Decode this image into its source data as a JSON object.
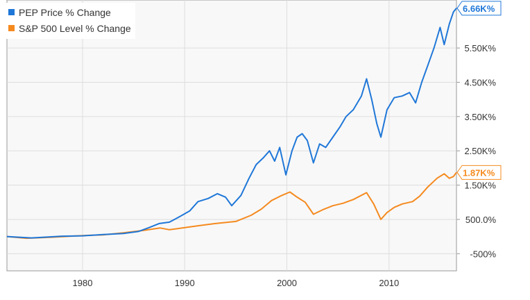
{
  "chart_data": {
    "type": "line",
    "title": "",
    "xlabel": "",
    "ylabel": "",
    "x_ticks": [
      "1980",
      "1990",
      "2000",
      "2010"
    ],
    "y_ticks": [
      {
        "value": -500,
        "label": "-500%"
      },
      {
        "value": 500,
        "label": "500.0%"
      },
      {
        "value": 1500,
        "label": "1.50K%"
      },
      {
        "value": 2500,
        "label": "2.50K%"
      },
      {
        "value": 3500,
        "label": "3.50K%"
      },
      {
        "value": 4500,
        "label": "4.50K%"
      },
      {
        "value": 5500,
        "label": "5.50K%"
      }
    ],
    "xlim": [
      1972.6,
      2016.6
    ],
    "ylim": [
      -1000,
      6900
    ],
    "grid": true,
    "legend_position": "top-left",
    "series": [
      {
        "name": "PEP Price % Change",
        "color": "#1f77d8",
        "end_label": "6.66K%",
        "end_value": 6660,
        "points": [
          [
            1972.6,
            0
          ],
          [
            1975,
            -40
          ],
          [
            1978,
            10
          ],
          [
            1980,
            20
          ],
          [
            1982,
            60
          ],
          [
            1984,
            90
          ],
          [
            1985.5,
            150
          ],
          [
            1986.5,
            260
          ],
          [
            1987.5,
            380
          ],
          [
            1988.5,
            420
          ],
          [
            1989.5,
            580
          ],
          [
            1990.5,
            750
          ],
          [
            1991.3,
            1020
          ],
          [
            1992.3,
            1110
          ],
          [
            1993.2,
            1250
          ],
          [
            1994,
            1150
          ],
          [
            1994.6,
            900
          ],
          [
            1995.5,
            1200
          ],
          [
            1996.3,
            1700
          ],
          [
            1997,
            2100
          ],
          [
            1997.7,
            2300
          ],
          [
            1998.3,
            2500
          ],
          [
            1998.8,
            2200
          ],
          [
            1999.3,
            2600
          ],
          [
            1999.9,
            1800
          ],
          [
            2000.5,
            2500
          ],
          [
            2001,
            2900
          ],
          [
            2001.5,
            3000
          ],
          [
            2002,
            2800
          ],
          [
            2002.6,
            2150
          ],
          [
            2003.2,
            2700
          ],
          [
            2003.8,
            2600
          ],
          [
            2004.5,
            2900
          ],
          [
            2005.2,
            3200
          ],
          [
            2005.8,
            3500
          ],
          [
            2006.5,
            3700
          ],
          [
            2007.3,
            4100
          ],
          [
            2007.8,
            4600
          ],
          [
            2008.3,
            4000
          ],
          [
            2008.8,
            3300
          ],
          [
            2009.2,
            2900
          ],
          [
            2009.8,
            3700
          ],
          [
            2010.5,
            4050
          ],
          [
            2011.3,
            4100
          ],
          [
            2012,
            4200
          ],
          [
            2012.6,
            3900
          ],
          [
            2013.2,
            4500
          ],
          [
            2013.8,
            5000
          ],
          [
            2014.4,
            5500
          ],
          [
            2015,
            6100
          ],
          [
            2015.4,
            5600
          ],
          [
            2015.9,
            6200
          ],
          [
            2016.3,
            6550
          ],
          [
            2016.6,
            6660
          ]
        ]
      },
      {
        "name": "S&P 500 Level % Change",
        "color": "#f58a1f",
        "end_label": "1.87K%",
        "end_value": 1870,
        "points": [
          [
            1972.6,
            0
          ],
          [
            1974.5,
            -50
          ],
          [
            1977,
            -20
          ],
          [
            1980,
            30
          ],
          [
            1982,
            50
          ],
          [
            1984,
            110
          ],
          [
            1986,
            180
          ],
          [
            1987.6,
            250
          ],
          [
            1988.5,
            200
          ],
          [
            1990,
            260
          ],
          [
            1991.5,
            320
          ],
          [
            1993,
            380
          ],
          [
            1995,
            440
          ],
          [
            1996.5,
            620
          ],
          [
            1997.5,
            800
          ],
          [
            1998.5,
            1050
          ],
          [
            1999.5,
            1200
          ],
          [
            2000.3,
            1300
          ],
          [
            2001,
            1150
          ],
          [
            2001.8,
            1000
          ],
          [
            2002.6,
            650
          ],
          [
            2003.5,
            780
          ],
          [
            2004.5,
            900
          ],
          [
            2005.5,
            970
          ],
          [
            2006.5,
            1080
          ],
          [
            2007.8,
            1280
          ],
          [
            2008.5,
            950
          ],
          [
            2009.2,
            500
          ],
          [
            2009.8,
            700
          ],
          [
            2010.5,
            850
          ],
          [
            2011.3,
            950
          ],
          [
            2012.3,
            1020
          ],
          [
            2013,
            1180
          ],
          [
            2013.8,
            1450
          ],
          [
            2014.7,
            1700
          ],
          [
            2015.4,
            1830
          ],
          [
            2015.9,
            1700
          ],
          [
            2016.3,
            1750
          ],
          [
            2016.6,
            1870
          ]
        ]
      }
    ]
  }
}
